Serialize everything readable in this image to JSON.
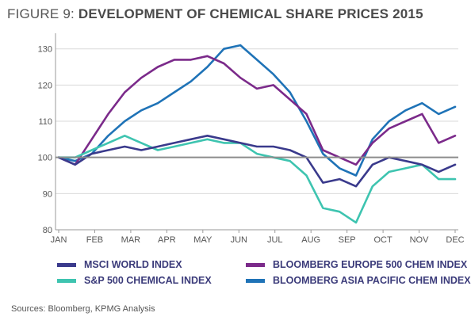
{
  "figure": {
    "title_lead": "FIGURE 9:",
    "title_main": "DEVELOPMENT OF CHEMICAL SHARE PRICES 2015",
    "source": "Sources: Bloomberg, KPMG Analysis"
  },
  "colors": {
    "msci": "#3a3a8c",
    "bloomberg_europe": "#7b2a8a",
    "sp500": "#3ec4b0",
    "bloomberg_asia": "#1f73b7",
    "baseline": "#8c8c8c",
    "grid": "#d9d9d9"
  },
  "chart_data": {
    "type": "line",
    "title": "DEVELOPMENT OF CHEMICAL SHARE PRICES 2015",
    "xlabel": "",
    "ylabel": "",
    "ylim": [
      80,
      133
    ],
    "y_ticks": [
      80,
      90,
      100,
      110,
      120,
      130
    ],
    "x_ticks": [
      "JAN",
      "FEB",
      "MAR",
      "APR",
      "MAY",
      "JUN",
      "JUL",
      "AUG",
      "SEP",
      "OCT",
      "NOV",
      "DEC"
    ],
    "baseline": 100,
    "grid": "horizontal",
    "x": [
      "Jan 1",
      "Jan 15",
      "Feb 1",
      "Feb 15",
      "Mar 1",
      "Mar 15",
      "Apr 1",
      "Apr 15",
      "May 1",
      "May 15",
      "Jun 1",
      "Jun 15",
      "Jul 1",
      "Jul 15",
      "Aug 1",
      "Aug 15",
      "Sep 1",
      "Sep 15",
      "Oct 1",
      "Oct 15",
      "Nov 1",
      "Nov 15",
      "Dec 1",
      "Dec 15",
      "Dec 31"
    ],
    "series": [
      {
        "name": "MSCI WORLD INDEX",
        "color_key": "msci",
        "values": [
          100,
          98,
          101,
          102,
          103,
          102,
          103,
          104,
          105,
          106,
          105,
          104,
          103,
          103,
          102,
          100,
          93,
          94,
          92,
          98,
          100,
          99,
          98,
          96,
          98
        ]
      },
      {
        "name": "BLOOMBERG EUROPE 500 CHEM INDEX",
        "color_key": "bloomberg_europe",
        "values": [
          100,
          98,
          105,
          112,
          118,
          122,
          125,
          127,
          127,
          128,
          126,
          122,
          119,
          120,
          116,
          112,
          102,
          100,
          98,
          104,
          108,
          110,
          112,
          104,
          106
        ]
      },
      {
        "name": "S&P 500 CHEMICAL INDEX",
        "color_key": "sp500",
        "values": [
          100,
          100,
          102,
          104,
          106,
          104,
          102,
          103,
          104,
          105,
          104,
          104,
          101,
          100,
          99,
          95,
          86,
          85,
          82,
          92,
          96,
          97,
          98,
          94,
          94
        ]
      },
      {
        "name": "BLOOMBERG ASIA PACIFIC CHEM INDEX",
        "color_key": "bloomberg_asia",
        "values": [
          100,
          99,
          101,
          106,
          110,
          113,
          115,
          118,
          121,
          125,
          130,
          131,
          127,
          123,
          118,
          110,
          101,
          97,
          95,
          105,
          110,
          113,
          115,
          112,
          114
        ]
      }
    ]
  },
  "legend": {
    "items": [
      {
        "label": "MSCI WORLD INDEX",
        "color_key": "msci"
      },
      {
        "label": "BLOOMBERG EUROPE 500 CHEM INDEX",
        "color_key": "bloomberg_europe"
      },
      {
        "label": "S&P 500 CHEMICAL INDEX",
        "color_key": "sp500"
      },
      {
        "label": "BLOOMBERG ASIA PACIFIC CHEM INDEX",
        "color_key": "bloomberg_asia"
      }
    ]
  }
}
